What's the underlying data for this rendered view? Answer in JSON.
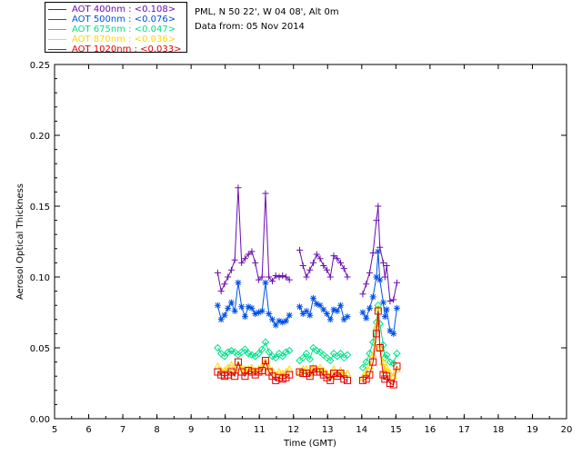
{
  "header": {
    "station": "PML, N 50 22', W 04 08', Alt 0m",
    "date_line": "Data from: 05 Nov 2014"
  },
  "legend": {
    "items": [
      {
        "label": "AOT  400nm : <0.108>",
        "color": "#6a0dad"
      },
      {
        "label": "AOT  500nm : <0.076>",
        "color": "#0050e6"
      },
      {
        "label": "AOT  675nm : <0.047>",
        "color": "#00e08a"
      },
      {
        "label": "AOT  870nm : <0.036>",
        "color": "#ffd700"
      },
      {
        "label": "AOT 1020nm : <0.033>",
        "color": "#e00000"
      }
    ]
  },
  "chart_data": {
    "type": "line",
    "xlabel": "Time (GMT)",
    "ylabel": "Aerosol Optical Thickness",
    "xlim": [
      5,
      20
    ],
    "ylim": [
      0,
      0.25
    ],
    "xticks": [
      "5",
      "6",
      "7",
      "8",
      "9",
      "10",
      "11",
      "12",
      "13",
      "14",
      "15",
      "16",
      "17",
      "18",
      "19",
      "20"
    ],
    "yticks": [
      "0.00",
      "0.05",
      "0.10",
      "0.15",
      "0.20",
      "0.25"
    ],
    "x": [
      9.78,
      9.88,
      9.98,
      10.08,
      10.18,
      10.28,
      10.38,
      10.48,
      10.58,
      10.68,
      10.78,
      10.88,
      10.98,
      11.08,
      11.18,
      11.28,
      11.38,
      11.48,
      11.58,
      11.68,
      11.78,
      11.88,
      12.18,
      12.28,
      12.38,
      12.48,
      12.58,
      12.68,
      12.78,
      12.88,
      12.98,
      13.08,
      13.18,
      13.28,
      13.38,
      13.48,
      13.58,
      14.03,
      14.13,
      14.23,
      14.33,
      14.43,
      14.48,
      14.53,
      14.63,
      14.68,
      14.73,
      14.83,
      14.93,
      15.03
    ],
    "series": [
      {
        "name": "AOT  400nm",
        "marker": "plus",
        "values": [
          0.103,
          0.09,
          0.095,
          0.1,
          0.105,
          0.112,
          0.163,
          0.11,
          0.113,
          0.116,
          0.118,
          0.11,
          0.098,
          0.1,
          0.159,
          0.1,
          0.097,
          0.101,
          0.1,
          0.101,
          0.1,
          0.098,
          0.119,
          0.108,
          0.1,
          0.105,
          0.11,
          0.116,
          0.113,
          0.108,
          0.105,
          0.1,
          0.115,
          0.113,
          0.11,
          0.106,
          0.1,
          0.088,
          0.095,
          0.103,
          0.117,
          0.14,
          0.15,
          0.121,
          0.11,
          0.1,
          0.108,
          0.083,
          0.084,
          0.096
        ]
      },
      {
        "name": "AOT  500nm",
        "marker": "asterisk",
        "values": [
          0.08,
          0.07,
          0.073,
          0.078,
          0.082,
          0.076,
          0.096,
          0.079,
          0.072,
          0.079,
          0.078,
          0.074,
          0.075,
          0.076,
          0.096,
          0.074,
          0.07,
          0.066,
          0.069,
          0.068,
          0.069,
          0.073,
          0.079,
          0.074,
          0.076,
          0.073,
          0.085,
          0.081,
          0.08,
          0.077,
          0.074,
          0.07,
          0.077,
          0.076,
          0.08,
          0.07,
          0.072,
          0.075,
          0.071,
          0.078,
          0.086,
          0.1,
          0.118,
          0.098,
          0.082,
          0.072,
          0.077,
          0.062,
          0.06,
          0.078
        ]
      },
      {
        "name": "AOT  675nm",
        "marker": "diamond",
        "values": [
          0.05,
          0.046,
          0.044,
          0.047,
          0.048,
          0.047,
          0.045,
          0.047,
          0.049,
          0.046,
          0.045,
          0.044,
          0.046,
          0.049,
          0.054,
          0.047,
          0.044,
          0.043,
          0.046,
          0.044,
          0.047,
          0.048,
          0.041,
          0.043,
          0.046,
          0.042,
          0.05,
          0.048,
          0.047,
          0.045,
          0.043,
          0.041,
          0.046,
          0.044,
          0.046,
          0.043,
          0.045,
          0.036,
          0.04,
          0.046,
          0.054,
          0.068,
          0.08,
          0.067,
          0.052,
          0.043,
          0.045,
          0.04,
          0.039,
          0.046
        ]
      },
      {
        "name": "AOT  870nm",
        "marker": "triangle",
        "values": [
          0.037,
          0.034,
          0.034,
          0.036,
          0.038,
          0.034,
          0.038,
          0.036,
          0.035,
          0.035,
          0.036,
          0.034,
          0.035,
          0.037,
          0.04,
          0.036,
          0.034,
          0.031,
          0.033,
          0.032,
          0.033,
          0.035,
          0.033,
          0.035,
          0.035,
          0.032,
          0.036,
          0.035,
          0.036,
          0.034,
          0.032,
          0.03,
          0.035,
          0.032,
          0.034,
          0.031,
          0.032,
          0.029,
          0.033,
          0.037,
          0.045,
          0.065,
          0.078,
          0.05,
          0.04,
          0.034,
          0.036,
          0.032,
          0.03,
          0.035
        ]
      },
      {
        "name": "AOT 1020nm",
        "marker": "square",
        "values": [
          0.033,
          0.031,
          0.03,
          0.031,
          0.033,
          0.03,
          0.04,
          0.033,
          0.03,
          0.034,
          0.033,
          0.031,
          0.033,
          0.034,
          0.041,
          0.033,
          0.03,
          0.027,
          0.029,
          0.028,
          0.029,
          0.031,
          0.033,
          0.032,
          0.032,
          0.03,
          0.035,
          0.033,
          0.033,
          0.031,
          0.029,
          0.027,
          0.032,
          0.03,
          0.032,
          0.028,
          0.027,
          0.027,
          0.028,
          0.031,
          0.04,
          0.06,
          0.076,
          0.05,
          0.031,
          0.028,
          0.03,
          0.025,
          0.024,
          0.037
        ]
      }
    ]
  }
}
